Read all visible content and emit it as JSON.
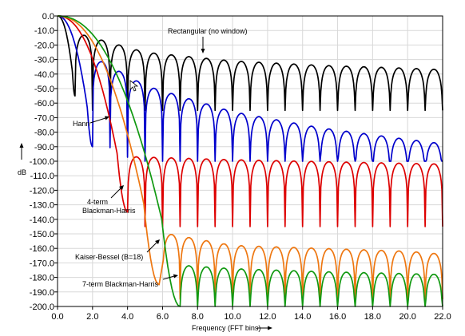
{
  "chart_data": {
    "type": "line",
    "xlabel": "Frequency (FFT bins)",
    "ylabel": "dB",
    "xlim": [
      0,
      22
    ],
    "ylim": [
      -200,
      0
    ],
    "x_ticks": [
      "0.0",
      "2.0",
      "4.0",
      "6.0",
      "8.0",
      "10.0",
      "12.0",
      "14.0",
      "16.0",
      "18.0",
      "20.0",
      "22.0"
    ],
    "y_ticks": [
      "0.0",
      "-10.0",
      "-20.0",
      "-30.0",
      "-40.0",
      "-50.0",
      "-60.0",
      "-70.0",
      "-80.0",
      "-90.0",
      "-100.0",
      "-110.0",
      "-120.0",
      "-130.0",
      "-140.0",
      "-150.0",
      "-160.0",
      "-170.0",
      "-180.0",
      "-190.0",
      "-200.0"
    ],
    "grid": true,
    "series": [
      {
        "name": "Rectangular (no window)",
        "color": "#000000",
        "mainlobe_end": 1,
        "sidelobe_peaks": [
          [
            1.5,
            -13.3
          ],
          [
            5,
            -25
          ],
          [
            10,
            -31
          ],
          [
            15,
            -34
          ],
          [
            20,
            -36
          ],
          [
            22,
            -37
          ]
        ],
        "null_depth": -55
      },
      {
        "name": "Hann",
        "color": "#0000cc",
        "mainlobe_end": 2,
        "sidelobe_peaks": [
          [
            2.5,
            -31.5
          ],
          [
            5,
            -48
          ],
          [
            10,
            -66
          ],
          [
            15,
            -77
          ],
          [
            20,
            -85
          ],
          [
            22,
            -88
          ]
        ],
        "null_depth": -90
      },
      {
        "name": "4-term Blackman-Harris",
        "color": "#dd0000",
        "mainlobe_end": 4,
        "sidelobe_peaks": [
          [
            4.5,
            -97
          ],
          [
            10,
            -99
          ],
          [
            22,
            -102
          ]
        ],
        "null_depth": -135
      },
      {
        "name": "Kaiser-Bessel (B=18)",
        "color": "#ee7711",
        "mainlobe_end": 5.8,
        "sidelobe_peaks": [
          [
            6.3,
            -150
          ],
          [
            10,
            -158
          ],
          [
            15,
            -160
          ],
          [
            20,
            -162
          ],
          [
            22,
            -164
          ]
        ],
        "null_depth": -185
      },
      {
        "name": "7-term Blackman-Harris",
        "color": "#119911",
        "mainlobe_end": 7,
        "sidelobe_peaks": [
          [
            7.5,
            -172
          ],
          [
            10,
            -174
          ],
          [
            15,
            -176
          ],
          [
            22,
            -178
          ]
        ],
        "null_depth": -200
      }
    ],
    "annotations": [
      {
        "text": "Rectangular (no window)",
        "series": 0
      },
      {
        "text": "Hann",
        "series": 1
      },
      {
        "text": "4-term",
        "text2": "Blackman-Harris",
        "series": 2
      },
      {
        "text": "Kaiser-Bessel (B=18)",
        "series": 3
      },
      {
        "text": "7-term Blackman-Harris",
        "series": 4
      }
    ]
  }
}
